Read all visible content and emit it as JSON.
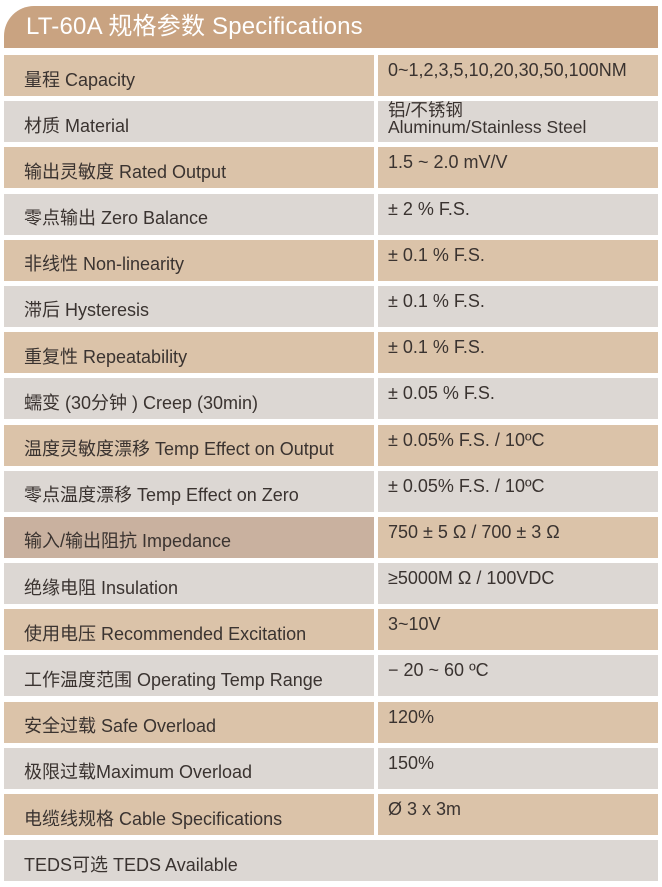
{
  "header": {
    "title": "LT-60A 规格参数 Specifications"
  },
  "colors": {
    "header": "#c9a381",
    "tan_row": "#dbc3a9",
    "grey_row": "#dcd7d3",
    "highlight_row": "#c9b19f"
  },
  "specs": [
    {
      "label": "量程 Capacity",
      "value": [
        "0~1,2,3,5,10,20,30,50,100NM"
      ]
    },
    {
      "label": "材质 Material",
      "value": [
        "铝/不锈钢",
        "Aluminum/Stainless Steel"
      ]
    },
    {
      "label": "输出灵敏度 Rated Output",
      "value": [
        "1.5 ~ 2.0 mV/V"
      ]
    },
    {
      "label": "零点输出  Zero Balance",
      "value": [
        "± 2 % F.S."
      ]
    },
    {
      "label": "非线性 Non-linearity",
      "value": [
        "± 0.1 % F.S."
      ]
    },
    {
      "label": "滞后 Hysteresis",
      "value": [
        "± 0.1 % F.S."
      ]
    },
    {
      "label": "重复性 Repeatability",
      "value": [
        "± 0.1 % F.S."
      ]
    },
    {
      "label": "蠕变 (30分钟 ) Creep (30min)",
      "value": [
        "± 0.05 % F.S."
      ]
    },
    {
      "label": "温度灵敏度漂移 Temp Effect on Output",
      "value": [
        "± 0.05% F.S. / 10ºC"
      ]
    },
    {
      "label": "零点温度漂移 Temp Effect on Zero",
      "value": [
        "± 0.05% F.S. / 10ºC"
      ]
    },
    {
      "label": "输入/输出阻抗 Impedance",
      "value": [
        "750 ± 5 Ω / 700 ± 3 Ω"
      ],
      "highlight": true
    },
    {
      "label": "绝缘电阻  Insulation",
      "value": [
        "≥5000M Ω / 100VDC"
      ]
    },
    {
      "label": "使用电压 Recommended Excitation",
      "value": [
        "3~10V"
      ]
    },
    {
      "label": "工作温度范围 Operating Temp  Range",
      "value": [
        "− 20 ~ 60 ºC"
      ]
    },
    {
      "label": "安全过载 Safe Overload",
      "value": [
        "120%"
      ]
    },
    {
      "label": "极限过载Maximum Overload",
      "value": [
        "150%"
      ]
    },
    {
      "label": "电缆线规格 Cable Specifications",
      "value": [
        "Ø 3 x 3m"
      ]
    },
    {
      "label": "TEDS可选 TEDS Available",
      "value": []
    }
  ]
}
